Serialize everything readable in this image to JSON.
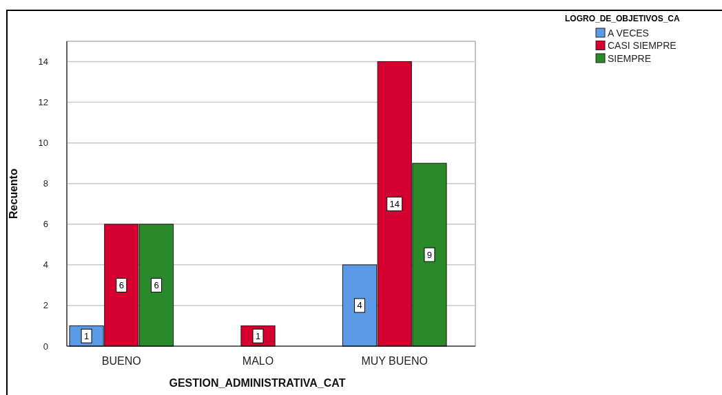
{
  "chart_data": {
    "type": "bar",
    "xlabel": "GESTION_ADMINISTRATIVA_CAT",
    "ylabel": "Recuento",
    "legend_title": "LOGRO_DE_OBJETIVOS_CA",
    "categories": [
      "BUENO",
      "MALO",
      "MUY BUENO"
    ],
    "series": [
      {
        "name": "A VECES",
        "color": "#5b9ae6",
        "values": [
          1,
          null,
          4
        ]
      },
      {
        "name": "CASI SIEMPRE",
        "color": "#d60030",
        "values": [
          6,
          1,
          14
        ]
      },
      {
        "name": "SIEMPRE",
        "color": "#2a8a2a",
        "values": [
          6,
          null,
          9
        ]
      }
    ],
    "ylim": [
      0,
      15
    ],
    "yticks": [
      0,
      2,
      4,
      6,
      8,
      10,
      12,
      14
    ],
    "grid": "y",
    "legend": "top right",
    "data_labels": true
  }
}
